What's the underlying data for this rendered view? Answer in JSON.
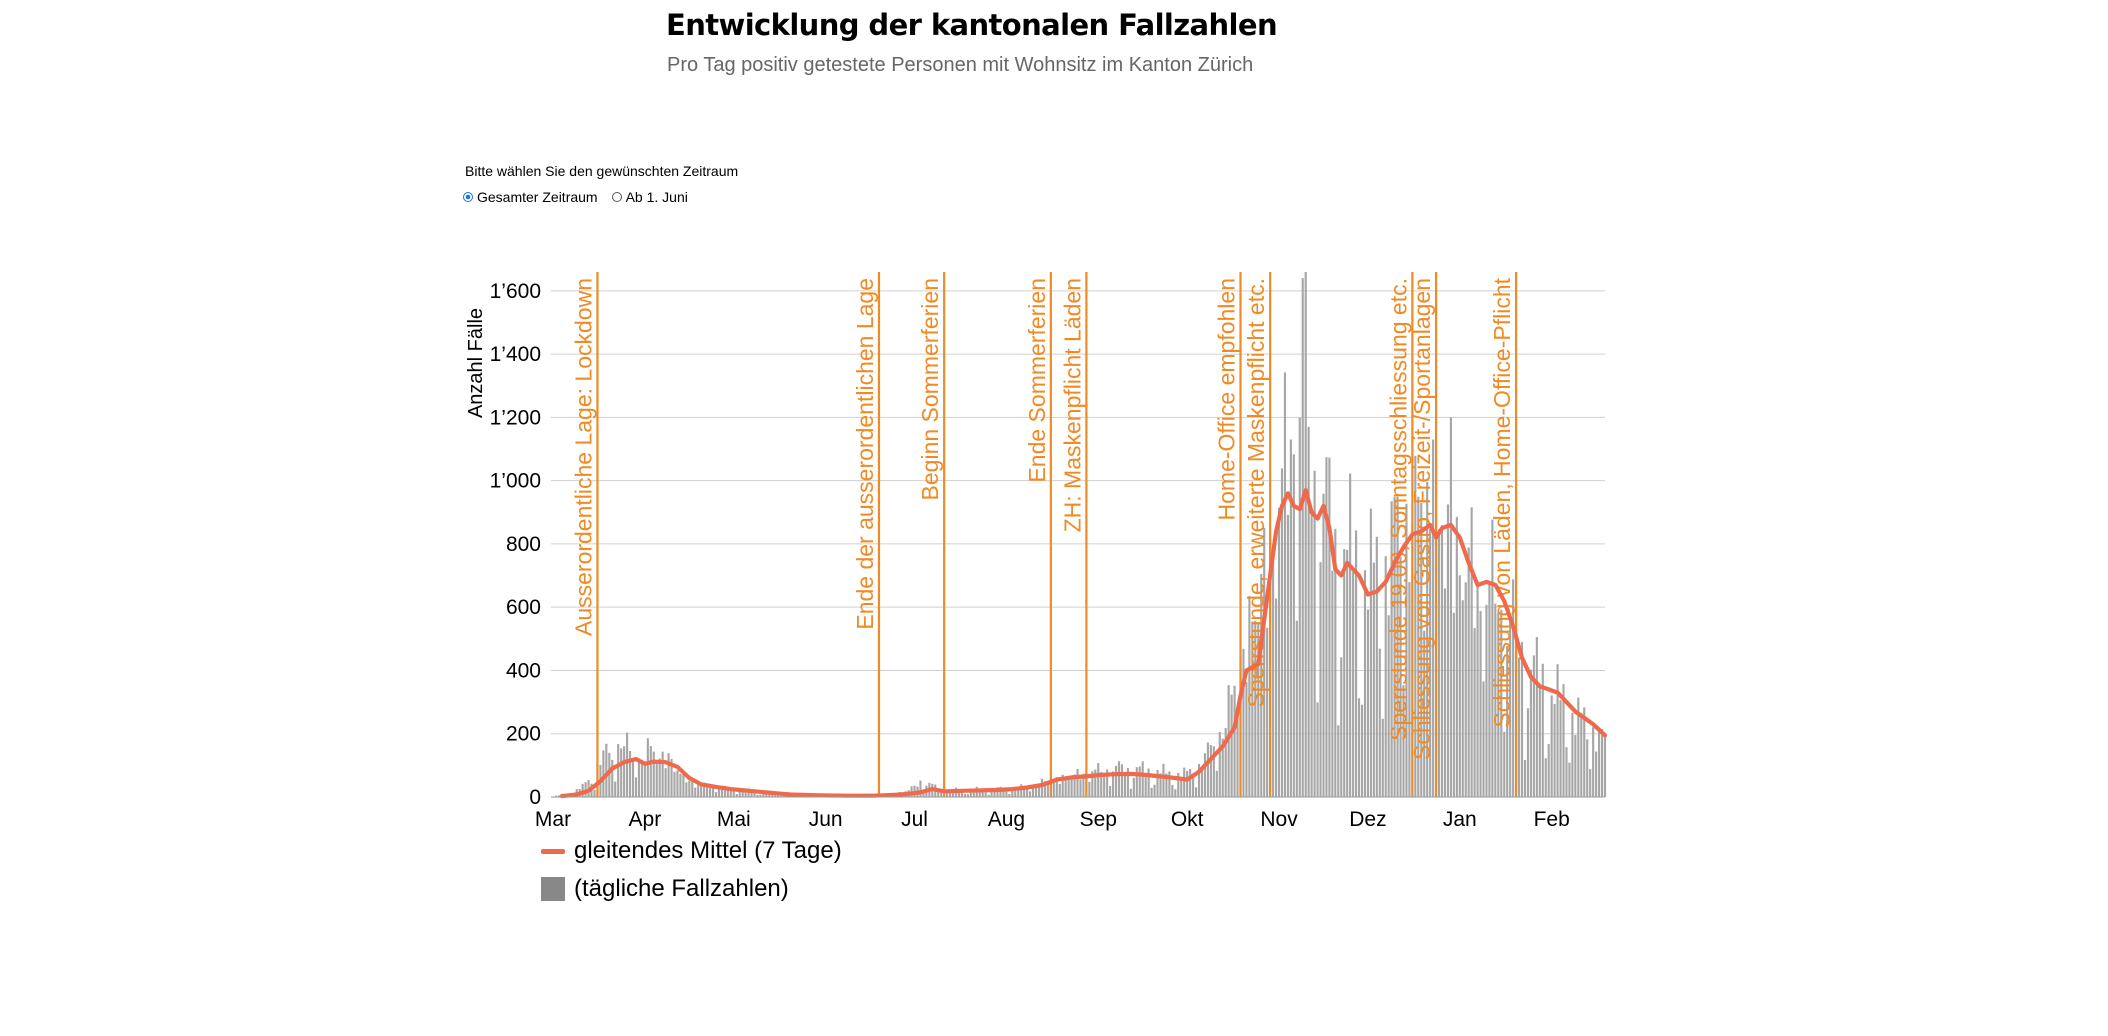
{
  "header": {
    "title": "Entwicklung der kantonalen Fallzahlen",
    "subtitle": "Pro Tag positiv getestete Personen mit Wohnsitz im Kanton Zürich"
  },
  "picker": {
    "label": "Bitte wählen Sie den gewünschten Zeitraum",
    "options": [
      {
        "label": "Gesamter Zeitraum",
        "selected": true
      },
      {
        "label": "Ab 1. Juni",
        "selected": false
      }
    ]
  },
  "legend": {
    "line": "gleitendes Mittel (7 Tage)",
    "bars": "(tägliche Fallzahlen)"
  },
  "colors": {
    "line": "#ef6a4c",
    "bars": "#a6a6a6",
    "events": "#f08a24",
    "grid": "#d0d0d0"
  },
  "chart_data": {
    "type": "bar+line",
    "ylabel": "Anzahl Fälle",
    "ylim": [
      0,
      1650
    ],
    "yticks": [
      0,
      200,
      400,
      600,
      800,
      1000,
      1200,
      1400,
      1600
    ],
    "ytick_labels": [
      "0",
      "200",
      "400",
      "600",
      "800",
      "1’000",
      "1’200",
      "1’400",
      "1’600"
    ],
    "x_start_day": 0,
    "x_end_day": 355,
    "months": [
      {
        "label": "Mar",
        "day": 0
      },
      {
        "label": "Apr",
        "day": 31
      },
      {
        "label": "Mai",
        "day": 61
      },
      {
        "label": "Jun",
        "day": 92
      },
      {
        "label": "Jul",
        "day": 122
      },
      {
        "label": "Aug",
        "day": 153
      },
      {
        "label": "Sep",
        "day": 184
      },
      {
        "label": "Okt",
        "day": 214
      },
      {
        "label": "Nov",
        "day": 245
      },
      {
        "label": "Dez",
        "day": 275
      },
      {
        "label": "Jan",
        "day": 306
      },
      {
        "label": "Feb",
        "day": 337
      }
    ],
    "events": [
      {
        "day": 15,
        "label": "Ausserordentliche Lage: Lockdown"
      },
      {
        "day": 110,
        "label": "Ende der ausserordentlichen Lage"
      },
      {
        "day": 132,
        "label": "Beginn Sommerferien"
      },
      {
        "day": 168,
        "label": "Ende Sommerferien"
      },
      {
        "day": 180,
        "label": "ZH: Maskenpflicht Läden"
      },
      {
        "day": 232,
        "label": "Home-Office empfohlen"
      },
      {
        "day": 242,
        "label": "Sperrstunde, erweiterte Maskenpflicht etc."
      },
      {
        "day": 290,
        "label": "Sperrstunde 19.00, Sonntagsschliessung etc."
      },
      {
        "day": 298,
        "label": "Schliessung von Gastro, Freizeit-/Sportanlagen"
      },
      {
        "day": 325,
        "label": "Schliessung von Läden, Home-Office-Pflicht"
      }
    ],
    "series": [
      {
        "name": "gleitendes Mittel (7 Tage)",
        "type": "line",
        "points": [
          [
            3,
            3
          ],
          [
            8,
            8
          ],
          [
            12,
            20
          ],
          [
            16,
            50
          ],
          [
            20,
            90
          ],
          [
            24,
            110
          ],
          [
            28,
            120
          ],
          [
            31,
            105
          ],
          [
            34,
            112
          ],
          [
            38,
            110
          ],
          [
            42,
            95
          ],
          [
            46,
            60
          ],
          [
            50,
            40
          ],
          [
            55,
            32
          ],
          [
            60,
            25
          ],
          [
            68,
            18
          ],
          [
            75,
            12
          ],
          [
            80,
            8
          ],
          [
            90,
            5
          ],
          [
            100,
            4
          ],
          [
            108,
            4
          ],
          [
            114,
            6
          ],
          [
            120,
            10
          ],
          [
            124,
            15
          ],
          [
            128,
            25
          ],
          [
            132,
            18
          ],
          [
            140,
            20
          ],
          [
            150,
            22
          ],
          [
            155,
            25
          ],
          [
            160,
            30
          ],
          [
            165,
            38
          ],
          [
            170,
            55
          ],
          [
            175,
            62
          ],
          [
            180,
            65
          ],
          [
            185,
            70
          ],
          [
            190,
            72
          ],
          [
            195,
            73
          ],
          [
            200,
            70
          ],
          [
            205,
            65
          ],
          [
            210,
            60
          ],
          [
            214,
            55
          ],
          [
            218,
            80
          ],
          [
            222,
            120
          ],
          [
            226,
            160
          ],
          [
            230,
            220
          ],
          [
            232,
            320
          ],
          [
            234,
            400
          ],
          [
            238,
            420
          ],
          [
            240,
            560
          ],
          [
            242,
            700
          ],
          [
            244,
            840
          ],
          [
            246,
            920
          ],
          [
            248,
            960
          ],
          [
            250,
            920
          ],
          [
            252,
            910
          ],
          [
            254,
            970
          ],
          [
            256,
            900
          ],
          [
            258,
            880
          ],
          [
            260,
            920
          ],
          [
            262,
            850
          ],
          [
            264,
            720
          ],
          [
            266,
            700
          ],
          [
            268,
            740
          ],
          [
            270,
            720
          ],
          [
            272,
            700
          ],
          [
            275,
            640
          ],
          [
            278,
            650
          ],
          [
            281,
            680
          ],
          [
            284,
            740
          ],
          [
            287,
            790
          ],
          [
            290,
            830
          ],
          [
            293,
            840
          ],
          [
            296,
            860
          ],
          [
            298,
            820
          ],
          [
            300,
            850
          ],
          [
            303,
            860
          ],
          [
            306,
            820
          ],
          [
            309,
            740
          ],
          [
            312,
            670
          ],
          [
            315,
            680
          ],
          [
            318,
            670
          ],
          [
            321,
            620
          ],
          [
            324,
            540
          ],
          [
            327,
            440
          ],
          [
            330,
            380
          ],
          [
            333,
            350
          ],
          [
            336,
            340
          ],
          [
            339,
            330
          ],
          [
            342,
            300
          ],
          [
            345,
            270
          ],
          [
            348,
            250
          ],
          [
            351,
            230
          ],
          [
            355,
            195
          ]
        ]
      },
      {
        "name": "(tägliche Fallzahlen)",
        "type": "bar",
        "anchors": [
          [
            0,
            2
          ],
          [
            6,
            10
          ],
          [
            10,
            30
          ],
          [
            14,
            80
          ],
          [
            18,
            130
          ],
          [
            22,
            170
          ],
          [
            26,
            140
          ],
          [
            30,
            120
          ],
          [
            34,
            160
          ],
          [
            38,
            130
          ],
          [
            42,
            90
          ],
          [
            46,
            55
          ],
          [
            50,
            40
          ],
          [
            56,
            32
          ],
          [
            62,
            25
          ],
          [
            70,
            15
          ],
          [
            80,
            8
          ],
          [
            90,
            5
          ],
          [
            108,
            5
          ],
          [
            114,
            10
          ],
          [
            120,
            20
          ],
          [
            124,
            50
          ],
          [
            128,
            35
          ],
          [
            132,
            20
          ],
          [
            140,
            22
          ],
          [
            150,
            25
          ],
          [
            160,
            32
          ],
          [
            168,
            55
          ],
          [
            175,
            70
          ],
          [
            180,
            80
          ],
          [
            185,
            85
          ],
          [
            190,
            90
          ],
          [
            196,
            85
          ],
          [
            202,
            80
          ],
          [
            208,
            70
          ],
          [
            214,
            70
          ],
          [
            218,
            100
          ],
          [
            222,
            150
          ],
          [
            226,
            220
          ],
          [
            230,
            350
          ],
          [
            234,
            520
          ],
          [
            238,
            650
          ],
          [
            242,
            820
          ],
          [
            246,
            1000
          ],
          [
            250,
            1150
          ],
          [
            253,
            1350
          ],
          [
            256,
            1050
          ],
          [
            260,
            900
          ],
          [
            264,
            760
          ],
          [
            268,
            730
          ],
          [
            272,
            700
          ],
          [
            276,
            660
          ],
          [
            280,
            700
          ],
          [
            284,
            800
          ],
          [
            288,
            880
          ],
          [
            292,
            900
          ],
          [
            296,
            950
          ],
          [
            300,
            880
          ],
          [
            304,
            850
          ],
          [
            308,
            760
          ],
          [
            312,
            680
          ],
          [
            316,
            650
          ],
          [
            320,
            620
          ],
          [
            324,
            520
          ],
          [
            328,
            430
          ],
          [
            332,
            370
          ],
          [
            336,
            330
          ],
          [
            340,
            290
          ],
          [
            344,
            260
          ],
          [
            348,
            230
          ],
          [
            352,
            200
          ],
          [
            355,
            180
          ]
        ],
        "peaks": [
          [
            253,
            1640
          ],
          [
            255,
            1170
          ],
          [
            249,
            1130
          ],
          [
            303,
            1200
          ],
          [
            297,
            1130
          ]
        ]
      }
    ]
  }
}
